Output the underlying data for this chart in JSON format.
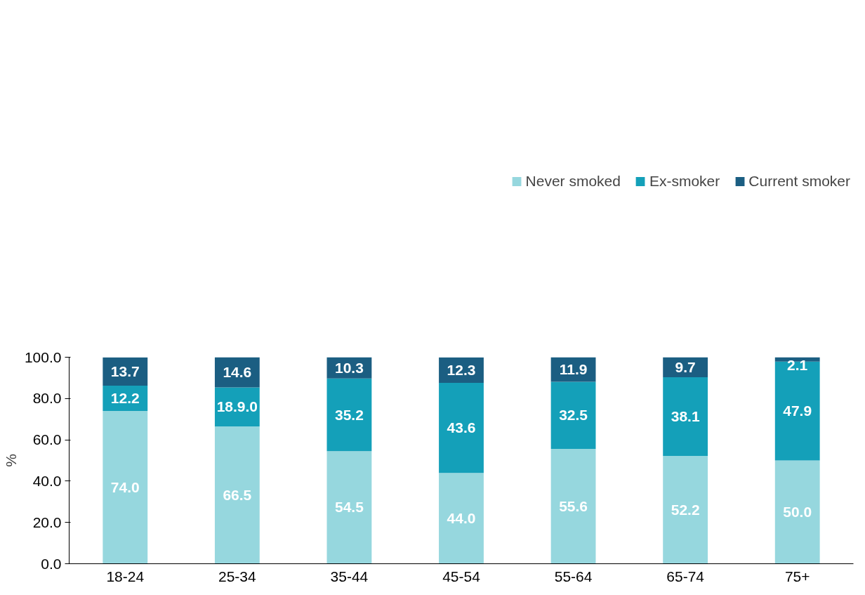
{
  "chart_data": {
    "type": "bar",
    "stacked": true,
    "ylabel": "%",
    "categories": [
      "18-24",
      "25-34",
      "35-44",
      "45-54",
      "55-64",
      "65-74",
      "75+"
    ],
    "series": [
      {
        "name": "Never smoked",
        "color": "#96d7de",
        "values": [
          74.0,
          66.5,
          54.5,
          44.0,
          55.6,
          52.2,
          50.0
        ],
        "value_labels": [
          "74.0",
          "66.5",
          "54.5",
          "44.0",
          "55.6",
          "52.2",
          "50.0"
        ]
      },
      {
        "name": "Ex-smoker",
        "color": "#14a0b9",
        "values": [
          12.2,
          18.9,
          35.2,
          43.6,
          32.5,
          38.1,
          47.9
        ],
        "value_labels": [
          "12.2",
          "18.9.0",
          "35.2",
          "43.6",
          "32.5",
          "38.1",
          "47.9"
        ]
      },
      {
        "name": "Current smoker",
        "color": "#1b5e82",
        "values": [
          13.7,
          14.6,
          10.3,
          12.3,
          11.9,
          9.7,
          2.1
        ],
        "value_labels": [
          "13.7",
          "14.6",
          "10.3",
          "12.3",
          "11.9",
          "9.7",
          "2.1"
        ]
      }
    ],
    "ylim": [
      0,
      100
    ],
    "yticks": [
      {
        "value": 0,
        "label": "0.0"
      },
      {
        "value": 20,
        "label": "20.0"
      },
      {
        "value": 40,
        "label": "40.0"
      },
      {
        "value": 60,
        "label": "60.0"
      },
      {
        "value": 80,
        "label": "80.0"
      },
      {
        "value": 100,
        "label": "100.0"
      }
    ],
    "grid": false,
    "legend": "top"
  }
}
